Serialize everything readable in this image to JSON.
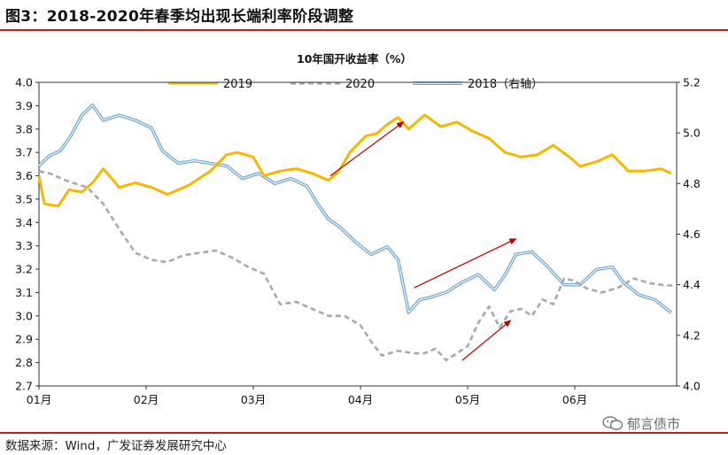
{
  "figure": {
    "title": "图3：2018-2020年春季均出现长端利率阶段调整",
    "source": "数据来源：Wind，广发证券发展研究中心",
    "watermark": "郁言债市"
  },
  "chart_data": {
    "type": "line",
    "title": "10年国开收益率（%）",
    "x_tick_labels": [
      "01月",
      "02月",
      "03月",
      "04月",
      "05月",
      "06月"
    ],
    "x_domain": [
      1,
      6.95
    ],
    "y_left": {
      "range": [
        2.7,
        4.0
      ],
      "ticks": [
        "4.0",
        "3.9",
        "3.8",
        "3.7",
        "3.6",
        "3.5",
        "3.4",
        "3.3",
        "3.2",
        "3.1",
        "3.0",
        "2.9",
        "2.8",
        "2.7"
      ]
    },
    "y_right": {
      "range": [
        4.0,
        5.2
      ],
      "ticks": [
        "5.2",
        "5.0",
        "4.8",
        "4.6",
        "4.4",
        "4.2",
        "4.0"
      ]
    },
    "series": [
      {
        "name": "2019",
        "axis": "left",
        "color": "#f5b800",
        "style": "solid",
        "points": [
          [
            1.0,
            3.6
          ],
          [
            1.05,
            3.48
          ],
          [
            1.18,
            3.47
          ],
          [
            1.28,
            3.54
          ],
          [
            1.4,
            3.53
          ],
          [
            1.5,
            3.57
          ],
          [
            1.6,
            3.63
          ],
          [
            1.75,
            3.55
          ],
          [
            1.9,
            3.57
          ],
          [
            2.05,
            3.55
          ],
          [
            2.2,
            3.52
          ],
          [
            2.4,
            3.56
          ],
          [
            2.6,
            3.62
          ],
          [
            2.75,
            3.69
          ],
          [
            2.85,
            3.7
          ],
          [
            3.0,
            3.68
          ],
          [
            3.1,
            3.6
          ],
          [
            3.25,
            3.62
          ],
          [
            3.4,
            3.63
          ],
          [
            3.55,
            3.61
          ],
          [
            3.7,
            3.58
          ],
          [
            3.8,
            3.62
          ],
          [
            3.9,
            3.7
          ],
          [
            4.05,
            3.77
          ],
          [
            4.15,
            3.78
          ],
          [
            4.25,
            3.82
          ],
          [
            4.35,
            3.85
          ],
          [
            4.45,
            3.8
          ],
          [
            4.6,
            3.86
          ],
          [
            4.75,
            3.81
          ],
          [
            4.9,
            3.83
          ],
          [
            5.05,
            3.79
          ],
          [
            5.2,
            3.76
          ],
          [
            5.35,
            3.7
          ],
          [
            5.5,
            3.68
          ],
          [
            5.65,
            3.69
          ],
          [
            5.8,
            3.73
          ],
          [
            5.95,
            3.68
          ],
          [
            6.05,
            3.64
          ],
          [
            6.2,
            3.66
          ],
          [
            6.35,
            3.69
          ],
          [
            6.5,
            3.62
          ],
          [
            6.65,
            3.62
          ],
          [
            6.8,
            3.63
          ],
          [
            6.9,
            3.61
          ]
        ]
      },
      {
        "name": "2020",
        "axis": "left",
        "color": "#a9a9a9",
        "style": "dashed",
        "points": [
          [
            1.0,
            3.62
          ],
          [
            1.1,
            3.61
          ],
          [
            1.25,
            3.58
          ],
          [
            1.45,
            3.55
          ],
          [
            1.6,
            3.48
          ],
          [
            1.75,
            3.37
          ],
          [
            1.9,
            3.27
          ],
          [
            2.05,
            3.24
          ],
          [
            2.2,
            3.23
          ],
          [
            2.35,
            3.26
          ],
          [
            2.5,
            3.27
          ],
          [
            2.65,
            3.28
          ],
          [
            2.8,
            3.25
          ],
          [
            2.95,
            3.21
          ],
          [
            3.1,
            3.18
          ],
          [
            3.25,
            3.05
          ],
          [
            3.4,
            3.06
          ],
          [
            3.55,
            3.03
          ],
          [
            3.7,
            3.0
          ],
          [
            3.85,
            3.0
          ],
          [
            4.0,
            2.96
          ],
          [
            4.1,
            2.89
          ],
          [
            4.2,
            2.83
          ],
          [
            4.35,
            2.85
          ],
          [
            4.5,
            2.84
          ],
          [
            4.6,
            2.84
          ],
          [
            4.7,
            2.86
          ],
          [
            4.8,
            2.81
          ],
          [
            4.9,
            2.84
          ],
          [
            5.0,
            2.87
          ],
          [
            5.1,
            2.97
          ],
          [
            5.2,
            3.04
          ],
          [
            5.3,
            2.95
          ],
          [
            5.4,
            3.02
          ],
          [
            5.5,
            3.03
          ],
          [
            5.6,
            3.0
          ],
          [
            5.7,
            3.07
          ],
          [
            5.8,
            3.05
          ],
          [
            5.9,
            3.16
          ],
          [
            6.0,
            3.15
          ],
          [
            6.1,
            3.12
          ],
          [
            6.25,
            3.1
          ],
          [
            6.4,
            3.12
          ],
          [
            6.55,
            3.16
          ],
          [
            6.7,
            3.14
          ],
          [
            6.85,
            3.13
          ],
          [
            6.95,
            3.13
          ]
        ]
      },
      {
        "name": "2018（右轴）",
        "axis": "right",
        "color": "#6ea7d8",
        "style": "double",
        "points": [
          [
            1.0,
            4.87
          ],
          [
            1.1,
            4.91
          ],
          [
            1.2,
            4.93
          ],
          [
            1.3,
            4.99
          ],
          [
            1.4,
            5.07
          ],
          [
            1.5,
            5.11
          ],
          [
            1.6,
            5.05
          ],
          [
            1.75,
            5.07
          ],
          [
            1.9,
            5.05
          ],
          [
            2.05,
            5.02
          ],
          [
            2.15,
            4.93
          ],
          [
            2.3,
            4.88
          ],
          [
            2.45,
            4.89
          ],
          [
            2.6,
            4.88
          ],
          [
            2.75,
            4.87
          ],
          [
            2.9,
            4.82
          ],
          [
            3.05,
            4.84
          ],
          [
            3.2,
            4.8
          ],
          [
            3.35,
            4.82
          ],
          [
            3.5,
            4.79
          ],
          [
            3.6,
            4.72
          ],
          [
            3.7,
            4.66
          ],
          [
            3.8,
            4.63
          ],
          [
            3.95,
            4.57
          ],
          [
            4.1,
            4.52
          ],
          [
            4.25,
            4.55
          ],
          [
            4.35,
            4.5
          ],
          [
            4.45,
            4.29
          ],
          [
            4.55,
            4.34
          ],
          [
            4.65,
            4.35
          ],
          [
            4.8,
            4.37
          ],
          [
            4.95,
            4.41
          ],
          [
            5.1,
            4.44
          ],
          [
            5.25,
            4.38
          ],
          [
            5.35,
            4.44
          ],
          [
            5.45,
            4.52
          ],
          [
            5.6,
            4.53
          ],
          [
            5.75,
            4.47
          ],
          [
            5.9,
            4.4
          ],
          [
            6.05,
            4.4
          ],
          [
            6.2,
            4.46
          ],
          [
            6.35,
            4.47
          ],
          [
            6.45,
            4.41
          ],
          [
            6.6,
            4.36
          ],
          [
            6.75,
            4.34
          ],
          [
            6.9,
            4.29
          ]
        ]
      }
    ],
    "annotations": [
      {
        "type": "arrow",
        "color": "#c00000",
        "from": [
          3.72,
          3.6
        ],
        "to": [
          4.4,
          3.83
        ]
      },
      {
        "type": "arrow",
        "color": "#c00000",
        "from": [
          4.5,
          3.12
        ],
        "to": [
          5.45,
          3.33
        ]
      },
      {
        "type": "arrow",
        "color": "#c00000",
        "from": [
          4.95,
          2.81
        ],
        "to": [
          5.4,
          2.98
        ]
      }
    ]
  }
}
